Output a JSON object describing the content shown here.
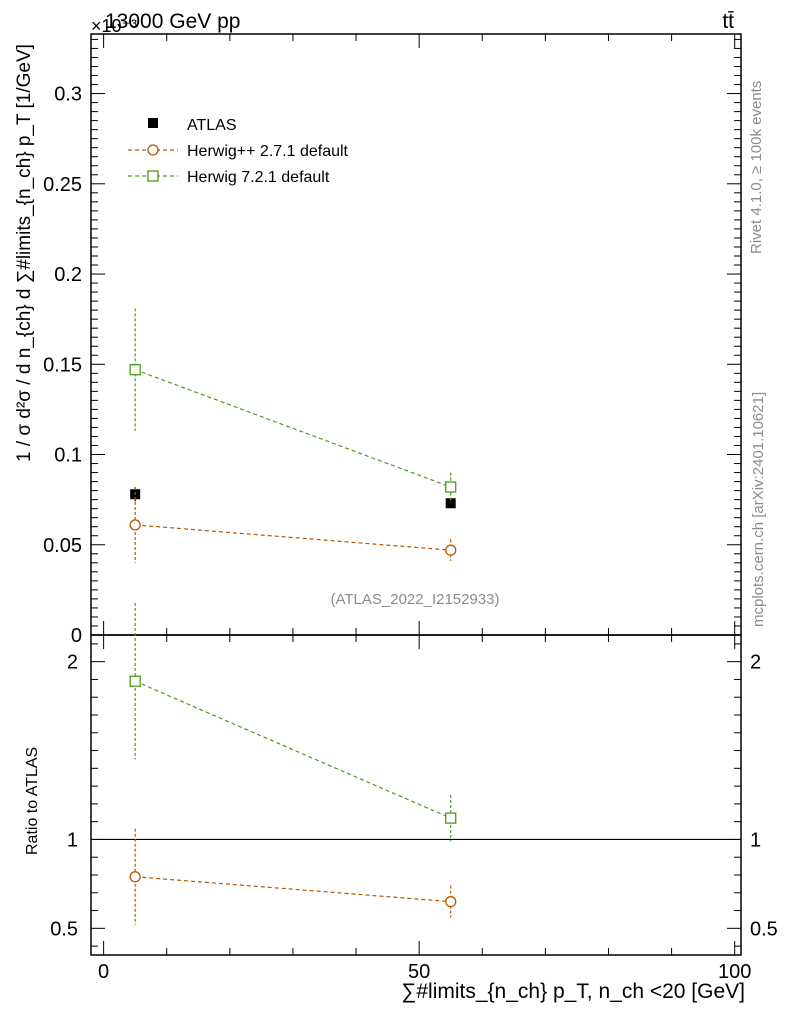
{
  "header": {
    "energy_label": "13000 GeV pp",
    "process_label": "tt̄",
    "exponent_label": "×10⁻³"
  },
  "side_texts": {
    "rivet": "Rivet 4.1.0, ≥ 100k events",
    "mcplots": "mcplots.cern.ch [arXiv:2401.10621]"
  },
  "chart_data": [
    {
      "type": "scatter",
      "panel": "main",
      "ylabel": "1 / σ d²σ / d n_{ch} d ∑#limits_{n_ch} p_T  [1/GeV]",
      "ylim": [
        0,
        0.333
      ],
      "y_scale_note": "×10⁻³",
      "yticks": [
        0,
        0.05,
        0.1,
        0.15,
        0.2,
        0.25,
        0.3
      ],
      "ytick_labels": [
        "0",
        "0.05",
        "0.1",
        "0.15",
        "0.2",
        "0.25",
        "0.3"
      ],
      "xlim": [
        -2,
        101
      ],
      "watermark": "(ATLAS_2022_I2152933)",
      "legend": [
        "ATLAS",
        "Herwig++ 2.7.1 default",
        "Herwig 7.2.1 default"
      ],
      "legend_position": "top-left",
      "series": [
        {
          "name": "ATLAS",
          "style": "marker",
          "marker": "filled-square",
          "color": "#000000",
          "x": [
            5,
            55
          ],
          "y": [
            0.078,
            0.073
          ],
          "err_low": [
            0.004,
            0.002
          ],
          "err_high": [
            0.004,
            0.002
          ]
        },
        {
          "name": "Herwig++ 2.7.1 default",
          "style": "dashed",
          "marker": "open-circle",
          "color": "#b35a00",
          "x": [
            5,
            55
          ],
          "y": [
            0.061,
            0.047
          ],
          "err_low": [
            0.021,
            0.006
          ],
          "err_high": [
            0.021,
            0.006
          ]
        },
        {
          "name": "Herwig 7.2.1 default",
          "style": "dashed",
          "marker": "open-square",
          "color": "#4d9a1a",
          "x": [
            5,
            55
          ],
          "y": [
            0.147,
            0.082
          ],
          "err_low": [
            0.034,
            0.009
          ],
          "err_high": [
            0.034,
            0.008
          ]
        }
      ]
    },
    {
      "type": "scatter",
      "panel": "ratio",
      "ylabel": "Ratio to ATLAS",
      "ylim": [
        0.35,
        2.15
      ],
      "yticks": [
        0.5,
        1,
        2
      ],
      "ytick_labels": [
        "0.5",
        "1",
        "2"
      ],
      "xlabel": "∑#limits_{n_ch} p_T, n_ch <20 [GeV]",
      "xlim": [
        -2,
        101
      ],
      "xticks": [
        0,
        50,
        100
      ],
      "xtick_labels": [
        "0",
        "50",
        "100"
      ],
      "series": [
        {
          "name": "Herwig++ 2.7.1 default",
          "style": "dashed",
          "marker": "open-circle",
          "color": "#b35a00",
          "x": [
            5,
            55
          ],
          "y": [
            0.79,
            0.65
          ],
          "err_low": [
            0.27,
            0.09
          ],
          "err_high": [
            0.27,
            0.09
          ]
        },
        {
          "name": "Herwig 7.2.1 default",
          "style": "dashed",
          "marker": "open-square",
          "color": "#4d9a1a",
          "x": [
            5,
            55
          ],
          "y": [
            1.89,
            1.12
          ],
          "err_low": [
            0.44,
            0.13
          ],
          "err_high": [
            0.44,
            0.13
          ]
        }
      ]
    }
  ]
}
